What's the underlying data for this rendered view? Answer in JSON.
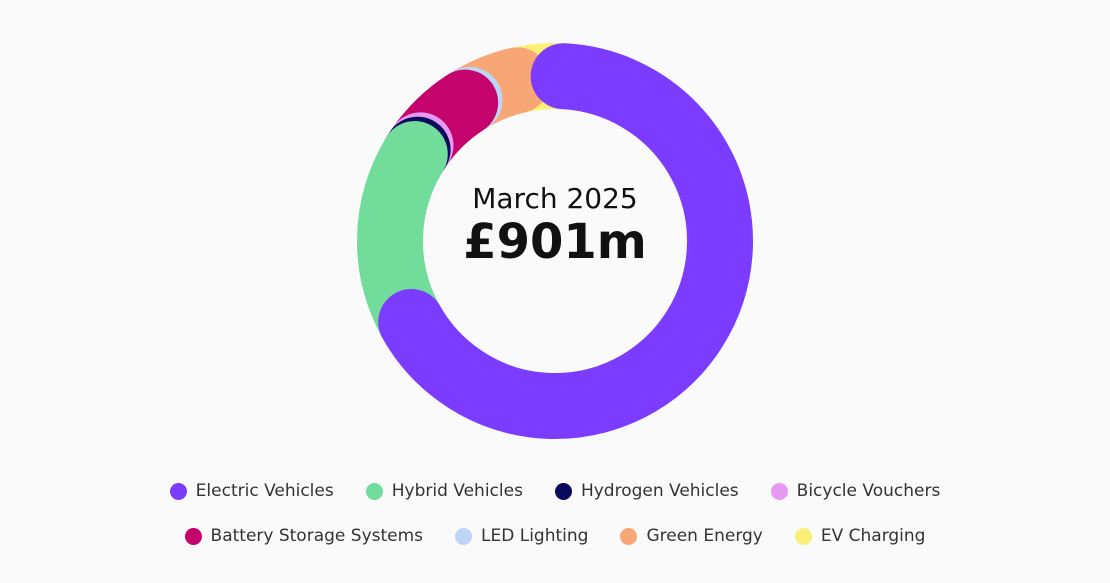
{
  "chart_data": {
    "type": "donut",
    "title": "March 2025",
    "total_label": "£901m",
    "categories": [
      "Electric Vehicles",
      "Hybrid Vehicles",
      "Hydrogen Vehicles",
      "Bicycle Vouchers",
      "Battery Storage Systems",
      "LED Lighting",
      "Green Energy",
      "EV Charging"
    ],
    "values": [
      66,
      17,
      0.5,
      0.5,
      6,
      0.5,
      5,
      4.5
    ],
    "colors": [
      "#7b3cff",
      "#72dc9a",
      "#0b0b5e",
      "#e79af3",
      "#c4036d",
      "#bdd5f7",
      "#f9a676",
      "#fbef78"
    ]
  }
}
